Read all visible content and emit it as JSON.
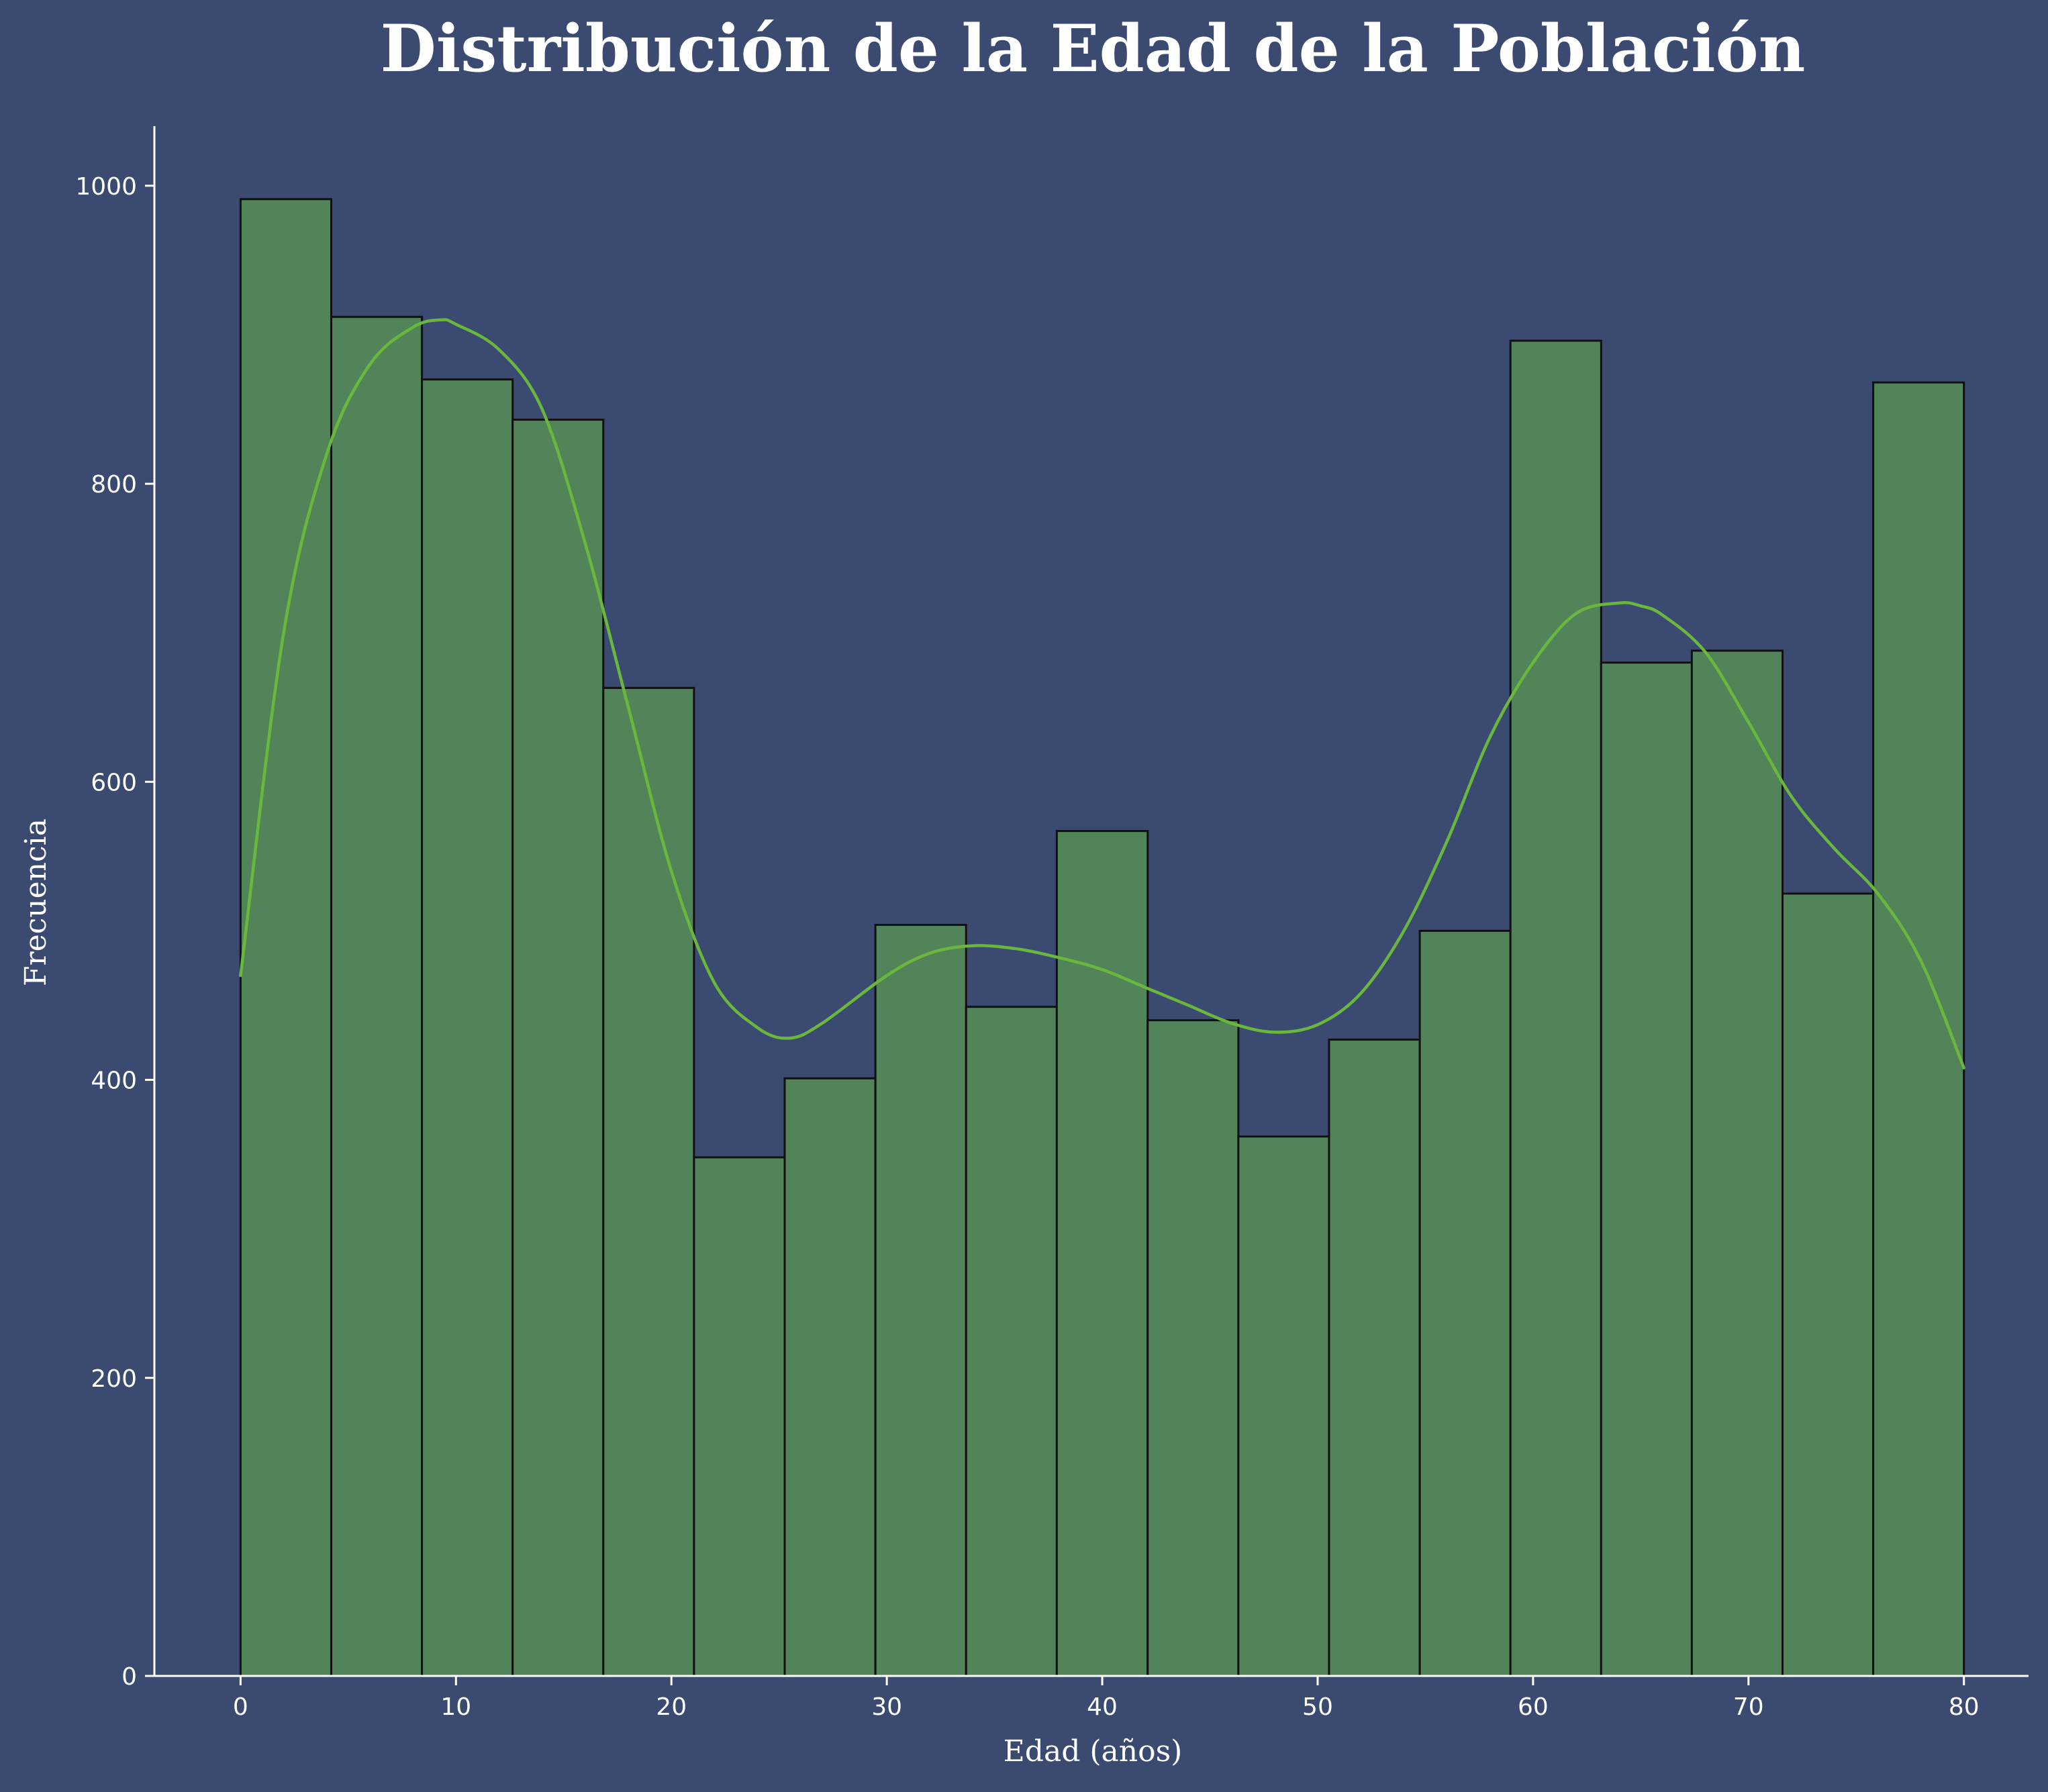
{
  "chart_data": {
    "type": "bar",
    "title": "Distribución de la Edad de la Población",
    "xlabel": "Edad (años)",
    "ylabel": "Frecuencia",
    "xlim": [
      -4,
      83
    ],
    "ylim": [
      0,
      1040
    ],
    "x_ticks": [
      0,
      10,
      20,
      30,
      40,
      50,
      60,
      70,
      80
    ],
    "y_ticks": [
      0,
      200,
      400,
      600,
      800,
      1000
    ],
    "bin_edges": [
      0,
      4.21,
      8.42,
      12.63,
      16.84,
      21.05,
      25.26,
      29.47,
      33.68,
      37.89,
      42.11,
      46.32,
      50.53,
      54.74,
      58.95,
      63.16,
      67.37,
      71.58,
      75.79,
      80
    ],
    "values": [
      991,
      912,
      870,
      843,
      663,
      348,
      401,
      504,
      449,
      567,
      440,
      362,
      427,
      500,
      896,
      680,
      688,
      525,
      868
    ],
    "kde": {
      "x": [
        0,
        2,
        4,
        6,
        8,
        9.3,
        10,
        12,
        14,
        16,
        18,
        20,
        22,
        24,
        25.5,
        27,
        30,
        32,
        34,
        36,
        38,
        40,
        42,
        44,
        46,
        48,
        50,
        52,
        54,
        56,
        58,
        60,
        62,
        64,
        65,
        66,
        68,
        70,
        72,
        74,
        76,
        78,
        80
      ],
      "y": [
        470,
        700,
        820,
        880,
        905,
        910,
        907,
        890,
        850,
        760,
        650,
        540,
        465,
        435,
        428,
        438,
        470,
        485,
        490,
        488,
        482,
        474,
        462,
        450,
        438,
        432,
        437,
        458,
        500,
        560,
        630,
        680,
        713,
        720,
        718,
        712,
        687,
        640,
        590,
        555,
        525,
        480,
        408
      ]
    },
    "grid": false,
    "legend": "none",
    "colors": {
      "background": "#3b4a71",
      "bar_fill": "#52845a",
      "bar_edge": "#111111",
      "kde_line": "#6ab73d",
      "axis": "#ffffff",
      "text": "#ffffff"
    }
  }
}
